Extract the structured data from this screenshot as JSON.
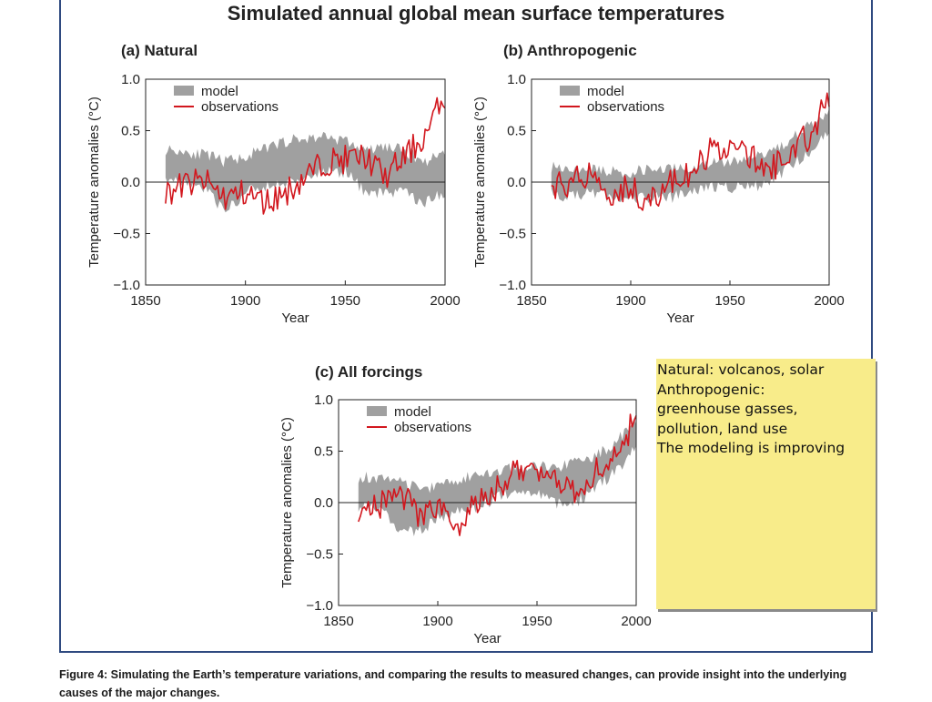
{
  "figure": {
    "title": "Simulated annual global mean surface temperatures",
    "caption": "Figure 4: Simulating the Earth’s temperature variations, and comparing the results to measured changes, can provide insight into the underlying causes of the major changes."
  },
  "note": {
    "lines": [
      "Natural: volcanos, solar",
      "",
      "Anthropogenic:",
      "greenhouse gasses,",
      "pollution, land use",
      "",
      "The modeling is improving"
    ]
  },
  "colors": {
    "model_band": "#a0a0a0",
    "observations": "#d2171e",
    "note_background": "#f8ec8a",
    "frame": "#2f4a80"
  },
  "chart_data": [
    {
      "type": "line",
      "title": "(a) Natural",
      "xlabel": "Year",
      "ylabel": "Temperature anomalies (°C)",
      "xlim": [
        1850,
        2000
      ],
      "ylim": [
        -1.0,
        1.0
      ],
      "xticks": [
        1850,
        1900,
        1950,
        2000
      ],
      "yticks": [
        1.0,
        0.5,
        0.0,
        -0.5,
        -1.0
      ],
      "ytick_labels": [
        "1.0",
        "0.5",
        "0.0",
        "−0.5",
        "−1.0"
      ],
      "legend": [
        "model",
        "observations"
      ],
      "x": [
        1860,
        1870,
        1880,
        1890,
        1900,
        1910,
        1920,
        1930,
        1940,
        1950,
        1960,
        1970,
        1980,
        1990,
        2000
      ],
      "series": [
        {
          "name": "model_upper",
          "values": [
            0.32,
            0.3,
            0.26,
            0.2,
            0.25,
            0.32,
            0.4,
            0.42,
            0.45,
            0.4,
            0.3,
            0.35,
            0.3,
            0.2,
            0.3
          ]
        },
        {
          "name": "model_lower",
          "values": [
            0.05,
            0.0,
            -0.05,
            -0.3,
            -0.1,
            -0.05,
            0.0,
            0.05,
            0.1,
            0.1,
            -0.1,
            -0.1,
            -0.1,
            -0.2,
            -0.1
          ]
        },
        {
          "name": "observations",
          "values": [
            -0.1,
            -0.02,
            0.0,
            -0.15,
            -0.1,
            -0.2,
            -0.1,
            0.05,
            0.2,
            0.22,
            0.25,
            0.05,
            0.25,
            0.45,
            0.85
          ]
        }
      ]
    },
    {
      "type": "line",
      "title": "(b) Anthropogenic",
      "xlabel": "Year",
      "ylabel": "Temperature anomalies (°C)",
      "xlim": [
        1850,
        2000
      ],
      "ylim": [
        -1.0,
        1.0
      ],
      "xticks": [
        1850,
        1900,
        1950,
        2000
      ],
      "yticks": [
        1.0,
        0.5,
        0.0,
        -0.5,
        -1.0
      ],
      "ytick_labels": [
        "1.0",
        "0.5",
        "0.0",
        "−0.5",
        "−1.0"
      ],
      "legend": [
        "model",
        "observations"
      ],
      "x": [
        1860,
        1870,
        1880,
        1890,
        1900,
        1910,
        1920,
        1930,
        1940,
        1950,
        1960,
        1970,
        1980,
        1990,
        2000
      ],
      "series": [
        {
          "name": "model_upper",
          "values": [
            0.15,
            0.15,
            0.12,
            0.1,
            0.1,
            0.12,
            0.15,
            0.15,
            0.2,
            0.2,
            0.2,
            0.3,
            0.4,
            0.55,
            0.7
          ]
        },
        {
          "name": "model_lower",
          "values": [
            -0.1,
            -0.15,
            -0.1,
            -0.15,
            -0.15,
            -0.15,
            -0.15,
            -0.1,
            -0.05,
            -0.05,
            -0.05,
            0.0,
            0.15,
            0.3,
            0.5
          ]
        },
        {
          "name": "observations",
          "values": [
            -0.05,
            0.0,
            0.1,
            -0.1,
            -0.05,
            -0.2,
            0.0,
            0.05,
            0.3,
            0.35,
            0.25,
            0.1,
            0.3,
            0.45,
            0.8
          ]
        }
      ]
    },
    {
      "type": "line",
      "title": "(c) All forcings",
      "xlabel": "Year",
      "ylabel": "Temperature anomalies (°C)",
      "xlim": [
        1850,
        2000
      ],
      "ylim": [
        -1.0,
        1.0
      ],
      "xticks": [
        1850,
        1900,
        1950,
        2000
      ],
      "yticks": [
        1.0,
        0.5,
        0.0,
        -0.5,
        -1.0
      ],
      "ytick_labels": [
        "1.0",
        "0.5",
        "0.0",
        "−0.5",
        "−1.0"
      ],
      "legend": [
        "model",
        "observations"
      ],
      "x": [
        1860,
        1870,
        1880,
        1890,
        1900,
        1910,
        1920,
        1930,
        1940,
        1950,
        1960,
        1970,
        1980,
        1990,
        2000
      ],
      "series": [
        {
          "name": "model_upper",
          "values": [
            0.25,
            0.25,
            0.2,
            0.15,
            0.15,
            0.2,
            0.3,
            0.3,
            0.35,
            0.35,
            0.35,
            0.4,
            0.45,
            0.6,
            0.8
          ]
        },
        {
          "name": "model_lower",
          "values": [
            -0.05,
            -0.05,
            -0.25,
            -0.3,
            -0.15,
            -0.1,
            -0.05,
            0.05,
            0.1,
            0.1,
            0.0,
            0.0,
            0.15,
            0.3,
            0.55
          ]
        },
        {
          "name": "observations",
          "values": [
            -0.05,
            -0.05,
            0.1,
            -0.1,
            -0.05,
            -0.2,
            0.0,
            0.15,
            0.3,
            0.35,
            0.25,
            0.1,
            0.3,
            0.45,
            0.85
          ]
        }
      ]
    }
  ]
}
